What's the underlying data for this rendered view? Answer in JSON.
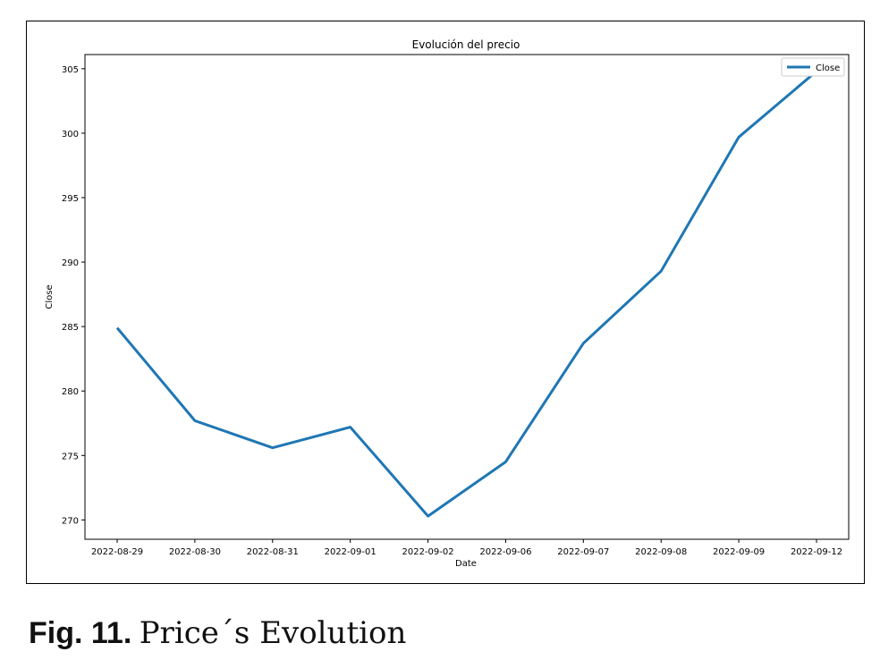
{
  "caption": {
    "lead": "Fig. 11.",
    "text": "Price´s Evolution"
  },
  "chart_data": {
    "type": "line",
    "title": "Evolución del precio",
    "xlabel": "Date",
    "ylabel": "Close",
    "categories": [
      "2022-08-29",
      "2022-08-30",
      "2022-08-31",
      "2022-09-01",
      "2022-09-02",
      "2022-09-06",
      "2022-09-07",
      "2022-09-08",
      "2022-09-09",
      "2022-09-12"
    ],
    "series": [
      {
        "name": "Close",
        "color": "#1f77b4",
        "values": [
          284.9,
          277.7,
          275.6,
          277.2,
          270.3,
          274.5,
          283.7,
          289.3,
          299.7,
          304.8
        ]
      }
    ],
    "yticks": [
      270,
      275,
      280,
      285,
      290,
      295,
      300,
      305
    ],
    "ylim": [
      268.5,
      306.1
    ],
    "grid": false,
    "legend_position": "top-right"
  }
}
